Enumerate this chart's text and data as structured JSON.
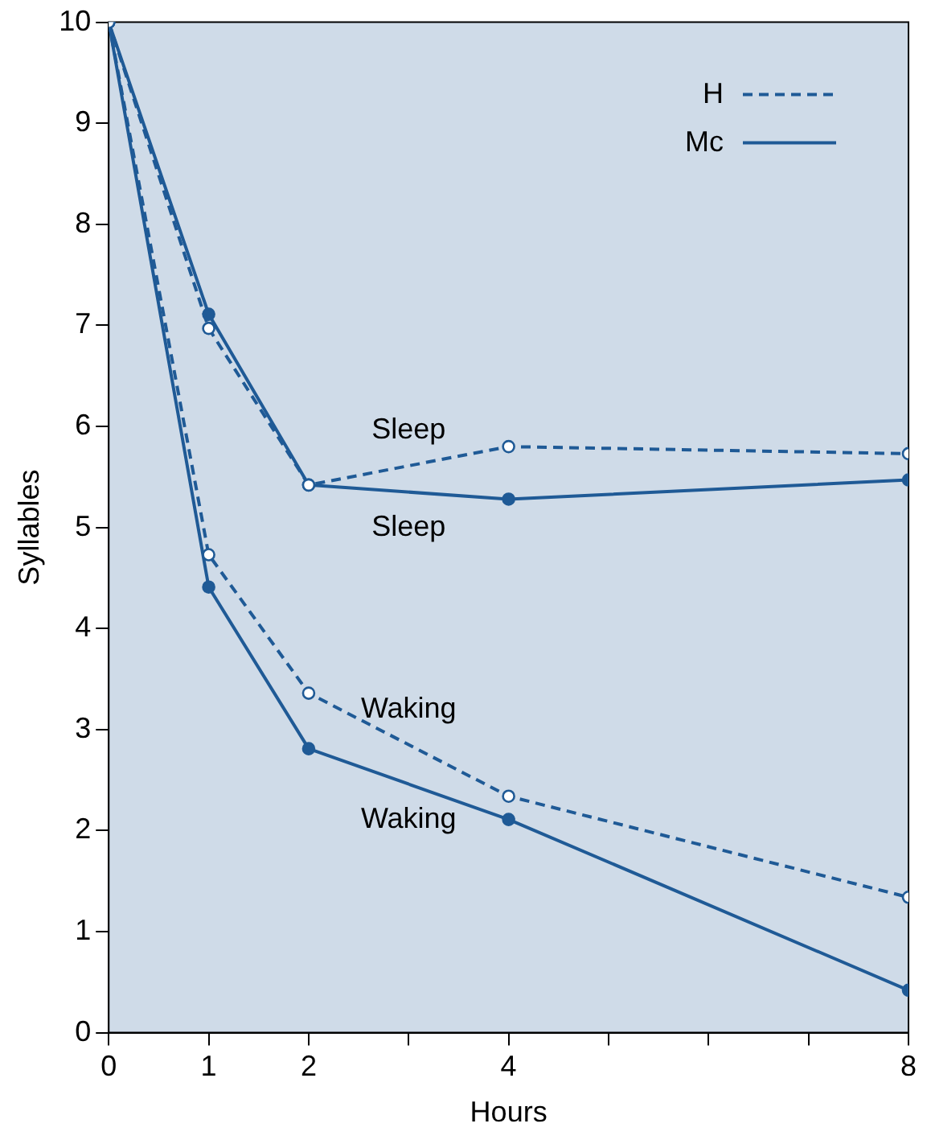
{
  "chart_data": {
    "type": "line",
    "xlabel": "Hours",
    "ylabel": "Syllables",
    "xlim": [
      0,
      8
    ],
    "ylim": [
      0,
      10
    ],
    "xticks": [
      0,
      1,
      2,
      {
        "value": 3,
        "label": null
      },
      4,
      {
        "value": 5,
        "label": null
      },
      {
        "value": 6,
        "label": null
      },
      {
        "value": 7,
        "label": null
      },
      8
    ],
    "yticks": [
      0,
      1,
      2,
      3,
      4,
      5,
      6,
      7,
      8,
      9,
      10
    ],
    "grid": false,
    "legend": "top right",
    "marker": "circle",
    "series": [
      {
        "name": "H",
        "color": "#1f5a96",
        "line_style": "dashed",
        "x": [
          0,
          1,
          2,
          4,
          8
        ],
        "values": [
          10,
          6.97,
          5.42,
          5.8,
          5.73
        ]
      },
      {
        "name": "Mc",
        "color": "#1f5a96",
        "line_style": "solid",
        "x": [
          0,
          1,
          2,
          4,
          8
        ],
        "values": [
          10,
          7.11,
          5.42,
          5.28,
          5.47
        ]
      },
      {
        "color": "#1f5a96",
        "line_style": "dashed",
        "x": [
          0,
          1,
          2,
          4,
          8
        ],
        "values": [
          10,
          4.73,
          3.36,
          2.34,
          1.34
        ]
      },
      {
        "color": "#1f5a96",
        "line_style": "solid",
        "x": [
          0,
          1,
          2,
          4,
          8
        ],
        "values": [
          10,
          4.41,
          2.81,
          2.11,
          0.42
        ]
      }
    ],
    "annotations": [
      "Sleep",
      "Sleep",
      "Waking",
      "Waking"
    ]
  }
}
